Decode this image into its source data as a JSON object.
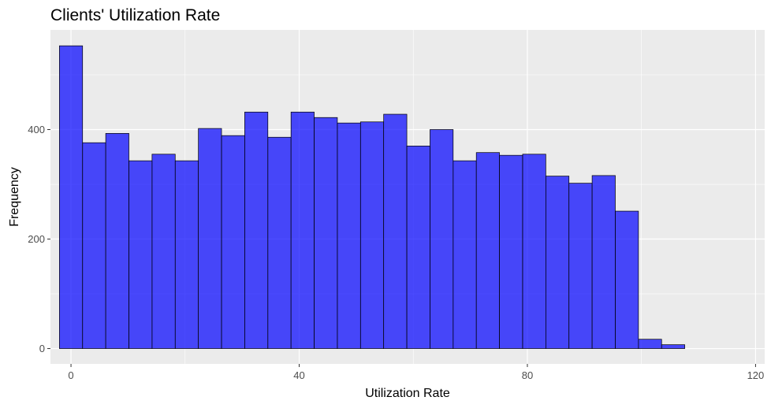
{
  "chart_data": {
    "type": "bar",
    "title": "Clients' Utilization Rate",
    "xlabel": "Utilization Rate",
    "ylabel": "Frequency",
    "xlim": [
      -3.6,
      121.6
    ],
    "ylim": [
      -28,
      582
    ],
    "x_ticks": [
      0,
      40,
      80,
      120
    ],
    "y_ticks": [
      0,
      200,
      400
    ],
    "grid": true,
    "bin_width": 4.06,
    "bins": [
      {
        "x0": -2.03,
        "x1": 2.03,
        "count": 553
      },
      {
        "x0": 2.03,
        "x1": 6.09,
        "count": 376
      },
      {
        "x0": 6.09,
        "x1": 10.15,
        "count": 393
      },
      {
        "x0": 10.15,
        "x1": 14.21,
        "count": 343
      },
      {
        "x0": 14.21,
        "x1": 18.27,
        "count": 355
      },
      {
        "x0": 18.27,
        "x1": 22.33,
        "count": 343
      },
      {
        "x0": 22.33,
        "x1": 26.39,
        "count": 402
      },
      {
        "x0": 26.39,
        "x1": 30.45,
        "count": 389
      },
      {
        "x0": 30.45,
        "x1": 34.51,
        "count": 432
      },
      {
        "x0": 34.51,
        "x1": 38.57,
        "count": 386
      },
      {
        "x0": 38.57,
        "x1": 42.63,
        "count": 432
      },
      {
        "x0": 42.63,
        "x1": 46.69,
        "count": 422
      },
      {
        "x0": 46.69,
        "x1": 50.75,
        "count": 412
      },
      {
        "x0": 50.75,
        "x1": 54.81,
        "count": 414
      },
      {
        "x0": 54.81,
        "x1": 58.87,
        "count": 428
      },
      {
        "x0": 58.87,
        "x1": 62.93,
        "count": 370
      },
      {
        "x0": 62.93,
        "x1": 66.99,
        "count": 400
      },
      {
        "x0": 66.99,
        "x1": 71.05,
        "count": 343
      },
      {
        "x0": 71.05,
        "x1": 75.11,
        "count": 358
      },
      {
        "x0": 75.11,
        "x1": 79.17,
        "count": 353
      },
      {
        "x0": 79.17,
        "x1": 83.23,
        "count": 355
      },
      {
        "x0": 83.23,
        "x1": 87.29,
        "count": 315
      },
      {
        "x0": 87.29,
        "x1": 91.35,
        "count": 302
      },
      {
        "x0": 91.35,
        "x1": 95.41,
        "count": 316
      },
      {
        "x0": 95.41,
        "x1": 99.47,
        "count": 251
      },
      {
        "x0": 99.47,
        "x1": 103.53,
        "count": 17
      },
      {
        "x0": 103.53,
        "x1": 107.59,
        "count": 7
      },
      {
        "x0": 107.59,
        "x1": 111.65,
        "count": 0
      },
      {
        "x0": 111.65,
        "x1": 115.71,
        "count": 0
      },
      {
        "x0": 115.71,
        "x1": 119.77,
        "count": 0
      }
    ],
    "bar_fill": "#0000ff",
    "bar_opacity": 0.7,
    "bar_outline": "#000000",
    "panel_background": "#ebebeb",
    "grid_color": "#ffffff"
  }
}
